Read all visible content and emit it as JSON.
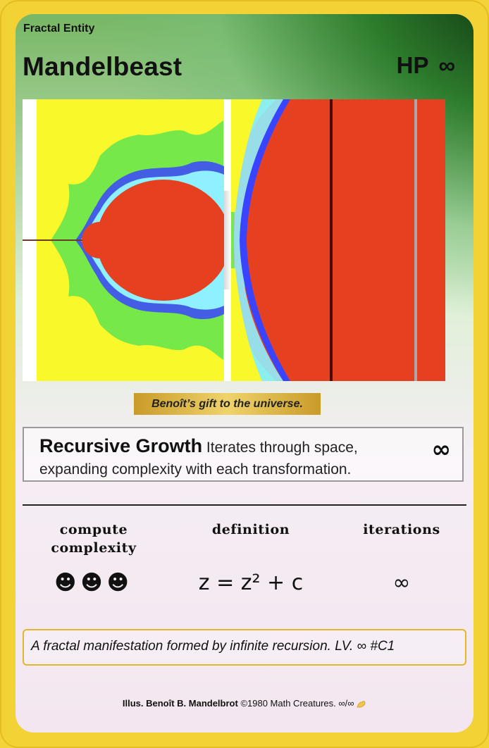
{
  "card": {
    "entity_type": "Fractal Entity",
    "name": "Mandelbeast",
    "hp_label": "HP",
    "hp_value": "∞"
  },
  "caption": "Benoît’s gift to the universe.",
  "attack": {
    "name": "Recursive Growth",
    "description": "Iterates through space, expanding complexity with each transformation.",
    "damage": "∞"
  },
  "stats": [
    {
      "label": "compute complexity",
      "value": "☻☻☻"
    },
    {
      "label": "definition",
      "value": "z = z² + c"
    },
    {
      "label": "iterations",
      "value": "∞"
    }
  ],
  "flavor_text": "A fractal manifestation formed by infinite recursion. LV. ∞ #C1",
  "credits": {
    "illustrator": "Illus. Benoît B. Mandelbrot",
    "copyright": "©1980 Math Creatures. ∞/∞",
    "icon": "flexed-arm-icon"
  },
  "colors": {
    "border": "#f3d235",
    "fractal_set": "#e5401f",
    "fractal_bg": "#f9f82b",
    "fractal_halo": "#77e84a"
  }
}
